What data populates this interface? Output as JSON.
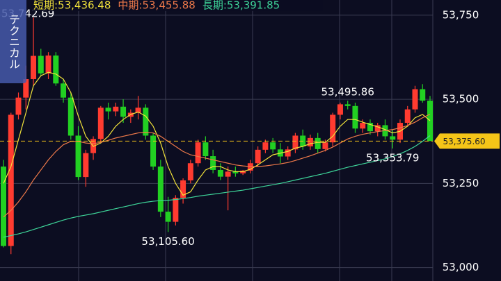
{
  "technical_button": "テクニカル",
  "chart_data": {
    "type": "candlestick",
    "ylim": [
      52960,
      53795
    ],
    "yticks": [
      {
        "value": 53000,
        "label": "53,000"
      },
      {
        "value": 53250,
        "label": "53,250"
      },
      {
        "value": 53500,
        "label": "53,500"
      },
      {
        "value": 53750,
        "label": "53,750"
      }
    ],
    "grid": true,
    "up_color": "#ff3b30",
    "down_color": "#22d022",
    "candles": [
      [
        53300,
        53320,
        53060,
        53064
      ],
      [
        53064,
        53460,
        53040,
        53454
      ],
      [
        53454,
        53520,
        53440,
        53505
      ],
      [
        53505,
        53600,
        53470,
        53560
      ],
      [
        53560,
        53742.69,
        53540,
        53629
      ],
      [
        53629,
        53650,
        53570,
        53577
      ],
      [
        53577,
        53640,
        53560,
        53630
      ],
      [
        53630,
        53640,
        53540,
        53547
      ],
      [
        53547,
        53560,
        53490,
        53505
      ],
      [
        53505,
        53520,
        53380,
        53392
      ],
      [
        53392,
        53420,
        53260,
        53269
      ],
      [
        53269,
        53350,
        53240,
        53340
      ],
      [
        53340,
        53390,
        53320,
        53382
      ],
      [
        53382,
        53480,
        53370,
        53475
      ],
      [
        53475,
        53490,
        53440,
        53464
      ],
      [
        53464,
        53490,
        53450,
        53478
      ],
      [
        53478,
        53500,
        53430,
        53448
      ],
      [
        53448,
        53470,
        53430,
        53460
      ],
      [
        53460,
        53510,
        53440,
        53475
      ],
      [
        53475,
        53485,
        53380,
        53392
      ],
      [
        53392,
        53400,
        53290,
        53300
      ],
      [
        53300,
        53320,
        53150,
        53166
      ],
      [
        53166,
        53210,
        53105.6,
        53136
      ],
      [
        53136,
        53215,
        53125,
        53207
      ],
      [
        53207,
        53265,
        53190,
        53259
      ],
      [
        53259,
        53320,
        53250,
        53310
      ],
      [
        53310,
        53380,
        53300,
        53372
      ],
      [
        53372,
        53390,
        53320,
        53331
      ],
      [
        53331,
        53350,
        53280,
        53290
      ],
      [
        53290,
        53310,
        53260,
        53270
      ],
      [
        53270,
        53300,
        53170,
        53285
      ],
      [
        53285,
        53300,
        53270,
        53280
      ],
      [
        53280,
        53290,
        53275,
        53288
      ],
      [
        53288,
        53320,
        53280,
        53310
      ],
      [
        53310,
        53360,
        53300,
        53350
      ],
      [
        53350,
        53380,
        53340,
        53372
      ],
      [
        53372,
        53385,
        53340,
        53351
      ],
      [
        53351,
        53370,
        53310,
        53330
      ],
      [
        53330,
        53360,
        53320,
        53351
      ],
      [
        53351,
        53400,
        53340,
        53392
      ],
      [
        53392,
        53410,
        53350,
        53360
      ],
      [
        53360,
        53395,
        53350,
        53385
      ],
      [
        53385,
        53400,
        53340,
        53352
      ],
      [
        53352,
        53380,
        53345,
        53372
      ],
      [
        53372,
        53460,
        53360,
        53454
      ],
      [
        53454,
        53490,
        53440,
        53485
      ],
      [
        53485,
        53495.86,
        53470,
        53480
      ],
      [
        53480,
        53490,
        53400,
        53413
      ],
      [
        53413,
        53440,
        53400,
        53430
      ],
      [
        53430,
        53440,
        53395,
        53405
      ],
      [
        53405,
        53430,
        53390,
        53423
      ],
      [
        53423,
        53440,
        53380,
        53390
      ],
      [
        53390,
        53410,
        53353.79,
        53380
      ],
      [
        53380,
        53440,
        53370,
        53430
      ],
      [
        53430,
        53480,
        53420,
        53470
      ],
      [
        53470,
        53540,
        53460,
        53530
      ],
      [
        53530,
        53545,
        53490,
        53496
      ],
      [
        53496,
        53510,
        53380,
        53375.6
      ]
    ],
    "series": [
      {
        "name": "短期:53,436.48",
        "color": "#f2e33a",
        "values": [
          53250,
          53300,
          53380,
          53460,
          53540,
          53570,
          53580,
          53575,
          53560,
          53520,
          53450,
          53390,
          53360,
          53370,
          53390,
          53420,
          53440,
          53455,
          53462,
          53450,
          53420,
          53370,
          53300,
          53250,
          53215,
          53225,
          53260,
          53290,
          53300,
          53300,
          53290,
          53285,
          53285,
          53292,
          53305,
          53320,
          53335,
          53340,
          53345,
          53355,
          53360,
          53368,
          53372,
          53372,
          53390,
          53420,
          53440,
          53440,
          53432,
          53425,
          53418,
          53410,
          53400,
          53405,
          53420,
          53445,
          53455,
          53436.48
        ]
      },
      {
        "name": "中期:53,455.88",
        "color": "#f07a4a",
        "values": [
          53150,
          53170,
          53195,
          53225,
          53260,
          53290,
          53320,
          53345,
          53365,
          53375,
          53375,
          53370,
          53368,
          53372,
          53378,
          53385,
          53390,
          53395,
          53400,
          53402,
          53400,
          53390,
          53375,
          53360,
          53345,
          53335,
          53330,
          53325,
          53320,
          53315,
          53310,
          53305,
          53302,
          53300,
          53300,
          53302,
          53305,
          53308,
          53312,
          53318,
          53325,
          53332,
          53340,
          53348,
          53358,
          53370,
          53382,
          53390,
          53396,
          53400,
          53404,
          53407,
          53410,
          53415,
          53422,
          53432,
          53445,
          53455.88
        ]
      },
      {
        "name": "長期:53,391.85",
        "color": "#3ed69a",
        "values": [
          53090,
          53095,
          53100,
          53106,
          53113,
          53120,
          53127,
          53134,
          53141,
          53147,
          53152,
          53156,
          53160,
          53165,
          53170,
          53175,
          53180,
          53185,
          53190,
          53194,
          53197,
          53199,
          53200,
          53202,
          53205,
          53208,
          53212,
          53215,
          53218,
          53221,
          53224,
          53227,
          53230,
          53234,
          53238,
          53242,
          53246,
          53250,
          53255,
          53260,
          53265,
          53270,
          53275,
          53280,
          53286,
          53292,
          53298,
          53303,
          53308,
          53313,
          53318,
          53323,
          53330,
          53338,
          53348,
          53360,
          53375,
          53391.85
        ]
      }
    ],
    "annotations": [
      {
        "value": 53742.69,
        "label": "53,742.69"
      },
      {
        "value": 53105.6,
        "label": "53,105.60"
      },
      {
        "value": 53495.86,
        "label": "53,495.86"
      },
      {
        "value": 53353.79,
        "label": "53,353.79"
      }
    ],
    "current_price": {
      "value": 53375.6,
      "label": "53,375.60"
    }
  }
}
